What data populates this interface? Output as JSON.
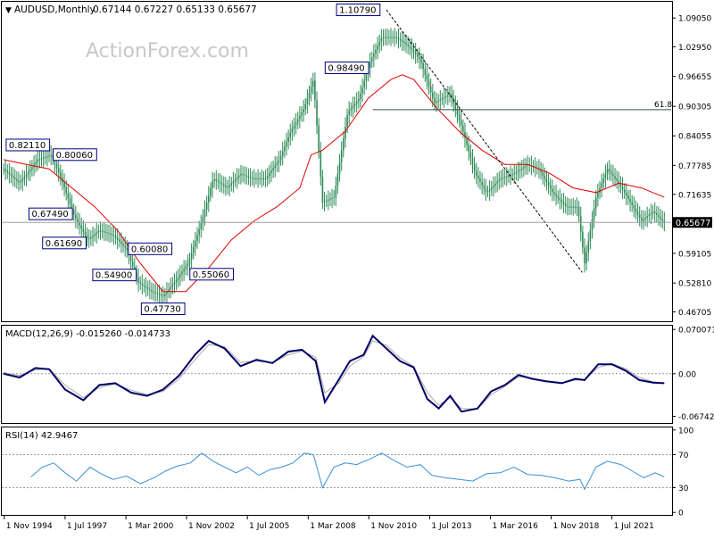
{
  "header": {
    "symbol": "AUDUSD,Monthly",
    "ohlc": "0.67144 0.67227 0.65133 0.65677"
  },
  "watermark": "ActionForex.com",
  "colors": {
    "candle": "#2e8b57",
    "ma": "#e00000",
    "macd_line": "#000066",
    "macd_signal": "#aaaaaa",
    "rsi": "#3a8fd6",
    "trendline": "#000000",
    "label_border": "#000080",
    "current_box": "#000000"
  },
  "chart_data": [
    {
      "type": "line",
      "name": "price",
      "ylim": [
        0.447,
        1.125
      ],
      "y_ticks": [
        "1.09050",
        "1.02950",
        "0.96655",
        "0.90305",
        "0.84055",
        "0.77785",
        "0.71635",
        "0.65677",
        "0.59105",
        "0.52810",
        "0.46705"
      ],
      "x_ticks": [
        "1 Nov 1994",
        "1 Jul 1997",
        "1 Mar 2000",
        "1 Nov 2002",
        "1 Jul 2005",
        "1 Mar 2008",
        "1 Nov 2010",
        "1 Jul 2013",
        "1 Mar 2016",
        "1 Nov 2018",
        "1 Jul 2021"
      ],
      "current_price": "0.65677",
      "fib_level": {
        "label": "61.8",
        "value": 0.896
      },
      "annotations": [
        "1.10790",
        "0.98490",
        "0.82110",
        "0.67490",
        "0.54900",
        "0.47730",
        "0.60080",
        "0.80060",
        "0.61690",
        "0.55060"
      ],
      "series": [
        {
          "name": "close",
          "x": [
            1994.8,
            1995.5,
            1996.3,
            1996.9,
            1997.4,
            1997.9,
            1998.5,
            1999.0,
            1999.6,
            2000.2,
            2000.7,
            2001.3,
            2001.8,
            2002.3,
            2002.9,
            2003.5,
            2004.0,
            2004.6,
            2005.2,
            2005.7,
            2006.3,
            2006.9,
            2007.4,
            2008.0,
            2008.4,
            2008.8,
            2009.3,
            2009.9,
            2010.4,
            2010.9,
            2011.4,
            2012.0,
            2012.6,
            2013.1,
            2013.7,
            2014.4,
            2014.9,
            2015.5,
            2016.0,
            2016.6,
            2017.2,
            2017.8,
            2018.3,
            2018.9,
            2019.5,
            2020.0,
            2020.3,
            2020.8,
            2021.3,
            2021.8,
            2022.3,
            2022.8,
            2023.3,
            2023.8
          ],
          "values": [
            0.77,
            0.74,
            0.79,
            0.8,
            0.74,
            0.67,
            0.62,
            0.64,
            0.63,
            0.6,
            0.53,
            0.51,
            0.5,
            0.53,
            0.57,
            0.66,
            0.75,
            0.73,
            0.76,
            0.75,
            0.75,
            0.79,
            0.85,
            0.9,
            0.96,
            0.7,
            0.71,
            0.89,
            0.92,
            1.0,
            1.05,
            1.05,
            1.03,
            1.0,
            0.91,
            0.93,
            0.86,
            0.76,
            0.72,
            0.75,
            0.76,
            0.78,
            0.77,
            0.72,
            0.69,
            0.69,
            0.57,
            0.71,
            0.77,
            0.74,
            0.7,
            0.66,
            0.68,
            0.6568
          ]
        },
        {
          "name": "MA",
          "x": [
            1994.8,
            1995.8,
            1996.8,
            1997.8,
            1998.8,
            1999.8,
            2000.8,
            2001.8,
            2002.8,
            2003.8,
            2004.8,
            2005.8,
            2006.8,
            2007.8,
            2008.3,
            2008.8,
            2009.8,
            2010.8,
            2011.8,
            2012.3,
            2012.8,
            2013.8,
            2014.8,
            2015.8,
            2016.8,
            2017.8,
            2018.8,
            2019.8,
            2020.8,
            2021.8,
            2022.8,
            2023.8
          ],
          "values": [
            0.79,
            0.78,
            0.77,
            0.73,
            0.69,
            0.64,
            0.57,
            0.51,
            0.51,
            0.56,
            0.62,
            0.66,
            0.69,
            0.73,
            0.8,
            0.81,
            0.85,
            0.92,
            0.96,
            0.97,
            0.96,
            0.9,
            0.85,
            0.81,
            0.78,
            0.78,
            0.76,
            0.73,
            0.72,
            0.74,
            0.73,
            0.71
          ]
        },
        {
          "name": "trendline",
          "x": [
            2011.6,
            2020.2
          ],
          "values": [
            1.1079,
            0.5506
          ]
        }
      ]
    },
    {
      "type": "line",
      "name": "MACD(12,26,9)",
      "legend": "MACD(12,26,9) -0.015260 -0.014733",
      "ylim": [
        -0.078,
        0.076
      ],
      "y_ticks": [
        "0.070071",
        "0.00",
        "-0.067423"
      ],
      "series": [
        {
          "name": "MACD",
          "x": [
            1994.8,
            1995.5,
            1996.2,
            1996.8,
            1997.5,
            1998.3,
            1999.0,
            1999.7,
            2000.4,
            2001.1,
            2001.8,
            2002.5,
            2003.2,
            2003.8,
            2004.5,
            2005.2,
            2005.9,
            2006.6,
            2007.3,
            2007.9,
            2008.5,
            2008.9,
            2009.5,
            2010.0,
            2010.6,
            2011.0,
            2011.6,
            2012.2,
            2012.8,
            2013.4,
            2013.9,
            2014.4,
            2014.9,
            2015.6,
            2016.2,
            2016.8,
            2017.4,
            2018.0,
            2018.6,
            2019.3,
            2019.9,
            2020.3,
            2020.9,
            2021.5,
            2022.1,
            2022.7,
            2023.3,
            2023.8
          ],
          "values": [
            0.0,
            -0.006,
            0.009,
            0.007,
            -0.025,
            -0.042,
            -0.018,
            -0.015,
            -0.03,
            -0.035,
            -0.025,
            -0.003,
            0.03,
            0.052,
            0.04,
            0.012,
            0.022,
            0.017,
            0.035,
            0.038,
            0.02,
            -0.045,
            -0.01,
            0.02,
            0.03,
            0.06,
            0.04,
            0.02,
            0.01,
            -0.04,
            -0.055,
            -0.035,
            -0.06,
            -0.055,
            -0.028,
            -0.018,
            -0.002,
            -0.008,
            -0.012,
            -0.015,
            -0.008,
            -0.01,
            0.015,
            0.015,
            0.005,
            -0.01,
            -0.014,
            -0.015
          ]
        },
        {
          "name": "Signal",
          "x": [
            1994.8,
            1995.5,
            1996.2,
            1996.8,
            1997.5,
            1998.3,
            1999.0,
            1999.7,
            2000.4,
            2001.1,
            2001.8,
            2002.5,
            2003.2,
            2003.8,
            2004.5,
            2005.2,
            2005.9,
            2006.6,
            2007.3,
            2007.9,
            2008.5,
            2008.9,
            2009.5,
            2010.0,
            2010.6,
            2011.0,
            2011.6,
            2012.2,
            2012.8,
            2013.4,
            2013.9,
            2014.4,
            2014.9,
            2015.6,
            2016.2,
            2016.8,
            2017.4,
            2018.0,
            2018.6,
            2019.3,
            2019.9,
            2020.3,
            2020.9,
            2021.5,
            2022.1,
            2022.7,
            2023.3,
            2023.8
          ],
          "values": [
            0.002,
            -0.003,
            0.006,
            0.008,
            -0.018,
            -0.038,
            -0.022,
            -0.016,
            -0.026,
            -0.033,
            -0.028,
            -0.008,
            0.022,
            0.046,
            0.043,
            0.018,
            0.02,
            0.018,
            0.03,
            0.036,
            0.026,
            -0.03,
            -0.015,
            0.012,
            0.027,
            0.052,
            0.045,
            0.025,
            0.012,
            -0.03,
            -0.05,
            -0.038,
            -0.055,
            -0.056,
            -0.033,
            -0.02,
            -0.005,
            -0.007,
            -0.011,
            -0.014,
            -0.01,
            -0.01,
            0.01,
            0.016,
            0.008,
            -0.006,
            -0.013,
            -0.0147
          ]
        }
      ]
    },
    {
      "type": "line",
      "name": "RSI(14)",
      "legend": "RSI(14) 42.9467",
      "ylim": [
        -3,
        103
      ],
      "y_ticks": [
        "100",
        "70",
        "30",
        "0"
      ],
      "levels": [
        70,
        30
      ],
      "series": [
        {
          "name": "RSI",
          "x": [
            1996.0,
            1996.5,
            1997.0,
            1997.5,
            1998.0,
            1998.6,
            1999.0,
            1999.6,
            2000.2,
            2000.8,
            2001.4,
            2001.9,
            2002.4,
            2003.0,
            2003.5,
            2004.0,
            2004.5,
            2005.0,
            2005.5,
            2006.0,
            2006.5,
            2007.0,
            2007.5,
            2008.0,
            2008.4,
            2008.8,
            2009.3,
            2009.8,
            2010.3,
            2010.9,
            2011.4,
            2012.0,
            2012.5,
            2013.1,
            2013.6,
            2014.2,
            2014.8,
            2015.4,
            2016.0,
            2016.6,
            2017.2,
            2017.8,
            2018.4,
            2019.0,
            2019.6,
            2020.1,
            2020.3,
            2020.8,
            2021.3,
            2021.9,
            2022.4,
            2022.9,
            2023.4,
            2023.8
          ],
          "values": [
            43,
            55,
            60,
            48,
            38,
            55,
            48,
            40,
            44,
            35,
            42,
            50,
            56,
            60,
            72,
            62,
            55,
            48,
            55,
            45,
            52,
            55,
            60,
            72,
            70,
            30,
            55,
            60,
            58,
            65,
            72,
            62,
            55,
            58,
            45,
            42,
            40,
            38,
            47,
            48,
            55,
            46,
            45,
            42,
            38,
            40,
            28,
            55,
            62,
            58,
            50,
            42,
            48,
            42.95
          ]
        }
      ]
    }
  ]
}
